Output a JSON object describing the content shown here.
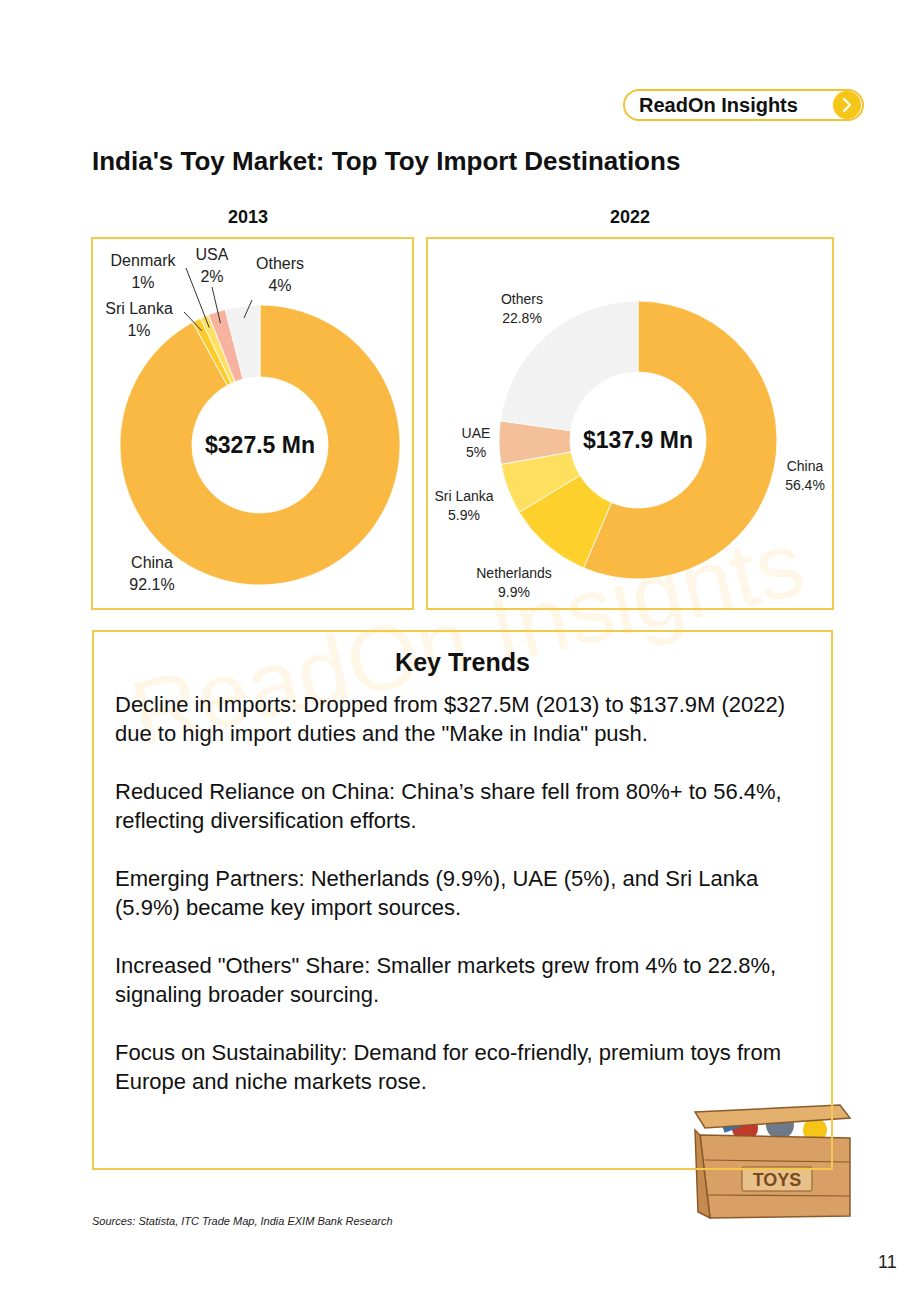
{
  "page": {
    "badge": "ReadOn Insights",
    "title": "India's Toy Market: Top Toy Import Destinations",
    "watermark": "ReadOn Insights",
    "key_trends": {
      "title": "Key Trends",
      "items": [
        "Decline in Imports: Dropped from $327.5M (2013) to $137.9M (2022) due to high import duties and the \"Make in India\" push.",
        "Reduced Reliance on China: China’s share fell from 80%+ to 56.4%, reflecting diversification efforts.",
        "Emerging Partners: Netherlands (9.9%), UAE (5%), and Sri Lanka (5.9%) became key import sources.",
        "Increased \"Others\" Share: Smaller markets grew from 4% to 22.8%, signaling broader sourcing.",
        "Focus on Sustainability: Demand for eco-friendly, premium toys from Europe and niche markets rose."
      ]
    },
    "illustration_label": "TOYS",
    "sources": "Sources: Statista, ITC Trade Map, India EXIM Bank Research",
    "page_number": "11"
  },
  "chart_data": [
    {
      "type": "pie",
      "title": "2013",
      "annotation": "$327.5 Mn",
      "categories": [
        "China",
        "Sri Lanka",
        "Denmark",
        "USA",
        "Others"
      ],
      "values": [
        92.1,
        1,
        1,
        2,
        4
      ],
      "value_labels": [
        "92.1%",
        "1%",
        "1%",
        "2%",
        "4%"
      ],
      "colors": [
        "#F9B942",
        "#FCCB2A",
        "#FFE066",
        "#F7B3A0",
        "#F2F2F2"
      ],
      "data_labels": true
    },
    {
      "type": "pie",
      "title": "2022",
      "annotation": "$137.9 Mn",
      "categories": [
        "China",
        "Netherlands",
        "Sri Lanka",
        "UAE",
        "Others"
      ],
      "values": [
        56.4,
        9.9,
        5.9,
        5,
        22.8
      ],
      "value_labels": [
        "56.4%",
        "9.9%",
        "5.9%",
        "5%",
        "22.8%"
      ],
      "colors": [
        "#F9B942",
        "#FDD02B",
        "#FFDF5E",
        "#F4C09A",
        "#F2F2F2"
      ],
      "data_labels": true
    }
  ]
}
